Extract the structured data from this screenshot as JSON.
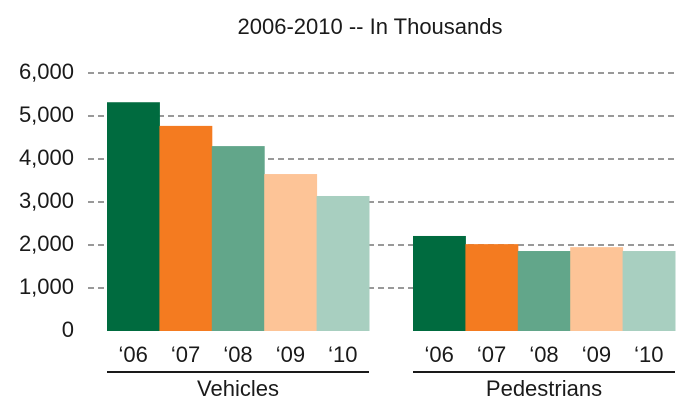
{
  "chart_data": {
    "type": "bar",
    "title": "2006-2010 --  In Thousands",
    "categories": [
      "Vehicles",
      "Pedestrians"
    ],
    "series": [
      {
        "name": "‘06",
        "color": "#006b3f",
        "values": [
          5320,
          2210
        ]
      },
      {
        "name": "‘07",
        "color": "#f47b20",
        "values": [
          4770,
          2020
        ]
      },
      {
        "name": "‘08",
        "color": "#62a68a",
        "values": [
          4300,
          1860
        ]
      },
      {
        "name": "‘09",
        "color": "#fdc497",
        "values": [
          3650,
          1950
        ]
      },
      {
        "name": "‘10",
        "color": "#a8cfc0",
        "values": [
          3140,
          1860
        ]
      }
    ],
    "ylim": [
      0,
      6000
    ],
    "yticks": [
      0,
      {
        "value": 1000,
        "label": "1,000"
      },
      {
        "value": 2000,
        "label": "2,000"
      },
      {
        "value": 3000,
        "label": "3,000"
      },
      {
        "value": 4000,
        "label": "4,000"
      },
      {
        "value": 5000,
        "label": "5,000"
      },
      {
        "value": 6000,
        "label": "6,000"
      }
    ],
    "grid": true
  }
}
